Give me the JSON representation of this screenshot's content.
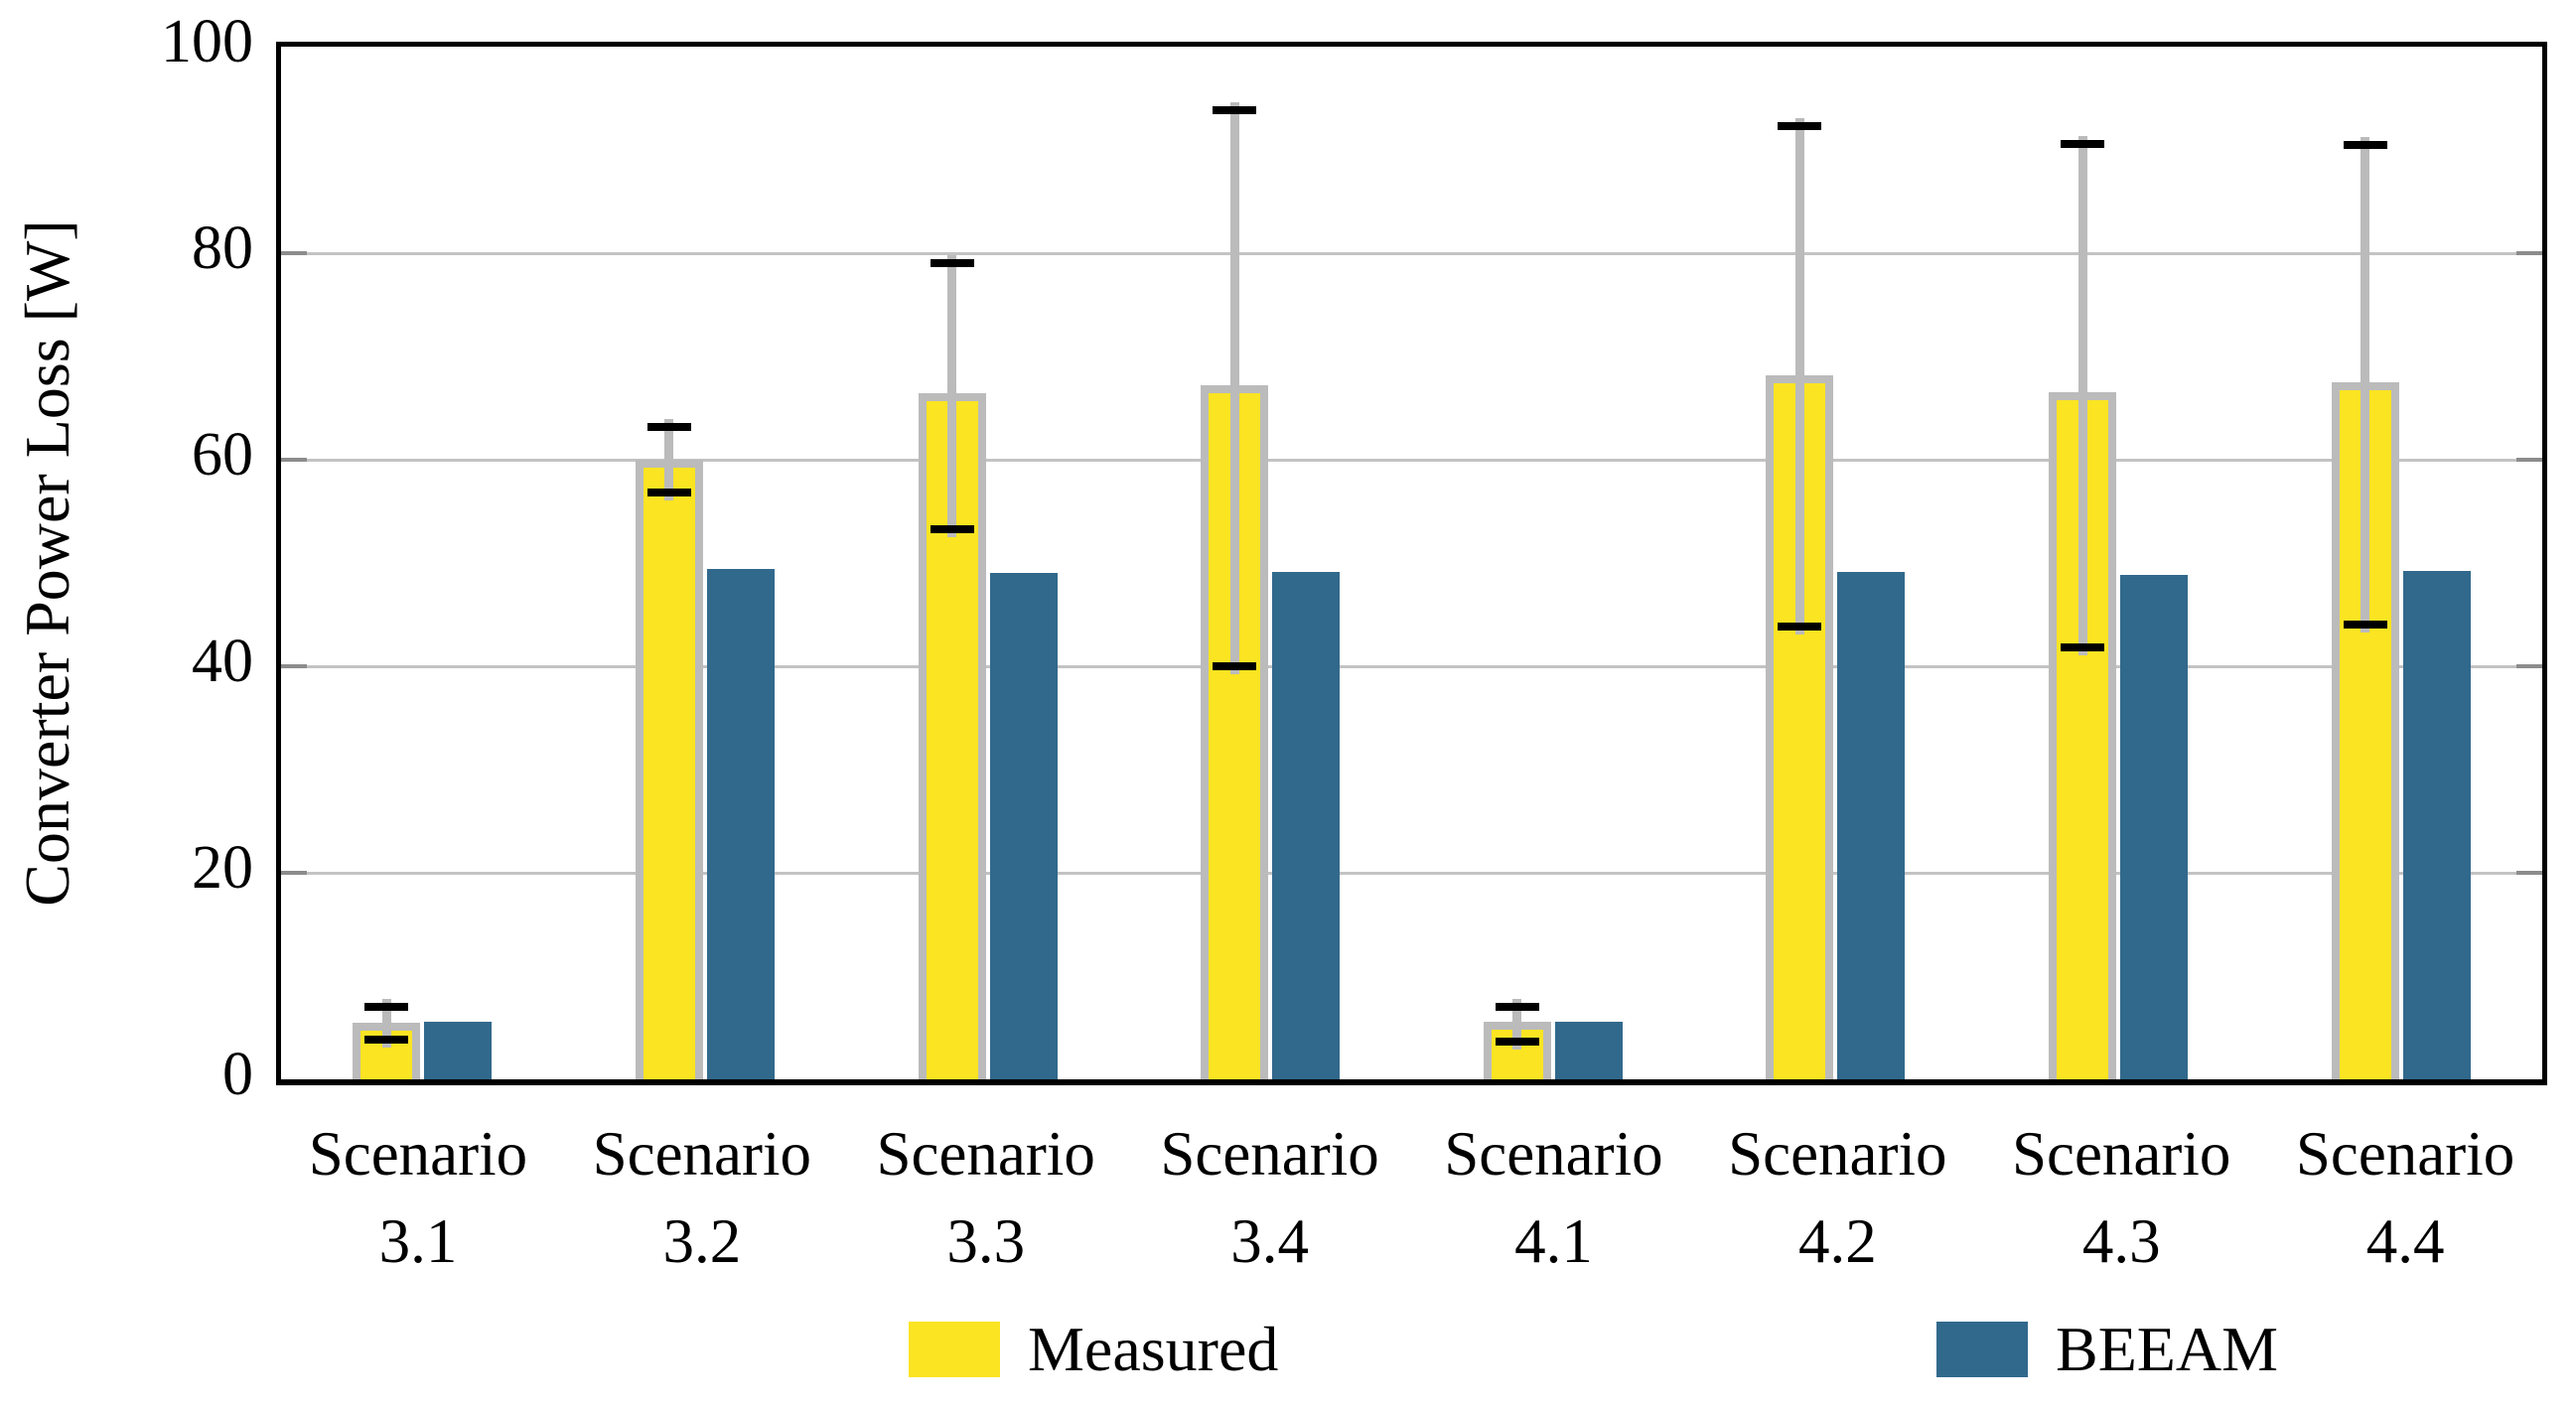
{
  "chart_data": {
    "type": "bar",
    "title": "",
    "xlabel": "",
    "ylabel": "Converter Power Loss [W]",
    "ylim": [
      0,
      100
    ],
    "yticks": [
      0,
      20,
      40,
      60,
      80,
      100
    ],
    "grid": true,
    "legend_position": "bottom",
    "categories": [
      "Scenario 3.1",
      "Scenario 3.2",
      "Scenario 3.3",
      "Scenario 3.4",
      "Scenario 4.1",
      "Scenario 4.2",
      "Scenario 4.3",
      "Scenario 4.4"
    ],
    "series": [
      {
        "name": "Measured",
        "color": "#FBE422",
        "edge_color": "#BBBBBB",
        "values": [
          5.5,
          60.0,
          66.4,
          67.2,
          5.6,
          68.2,
          66.5,
          67.5
        ],
        "error_low": [
          3.8,
          56.8,
          53.3,
          40.0,
          3.7,
          43.8,
          41.8,
          44.0
        ],
        "error_high": [
          7.0,
          63.2,
          79.0,
          93.8,
          7.0,
          92.3,
          90.6,
          90.5
        ],
        "error_bar_color": "#BBBBBB",
        "error_cap_color": "#000000"
      },
      {
        "name": "BEEAM",
        "color": "#31698C",
        "values": [
          5.6,
          49.4,
          49.0,
          49.1,
          5.6,
          49.1,
          48.8,
          49.2
        ]
      }
    ]
  }
}
